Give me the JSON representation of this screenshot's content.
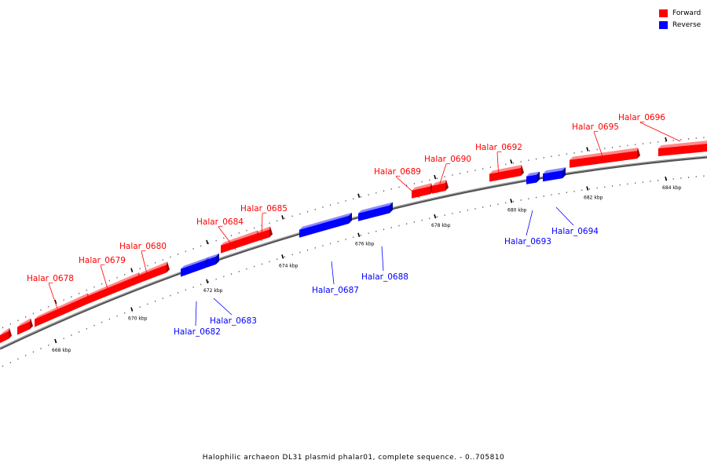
{
  "caption": "Halophilic archaeon DL31 plasmid phalar01, complete sequence. - 0..705810",
  "colors": {
    "forward": "#ff0000",
    "forward_top": "#ff8a8a",
    "forward_end": "#a80000",
    "reverse": "#0000ff",
    "reverse_top": "#8a8aff",
    "reverse_end": "#0000a8",
    "backbone": "#707070"
  },
  "legend": [
    {
      "label": "Forward",
      "strand": "forward"
    },
    {
      "label": "Reverse",
      "strand": "reverse"
    }
  ],
  "scale_labels": [
    "668 kbp",
    "670 kbp",
    "672 kbp",
    "674 kbp",
    "676 kbp",
    "678 kbp",
    "680 kbp",
    "682 kbp",
    "684 kbp"
  ],
  "genes": [
    {
      "label": "Halar_0678",
      "strand": "forward"
    },
    {
      "label": "Halar_0679",
      "strand": "forward"
    },
    {
      "label": "Halar_0680",
      "strand": "forward"
    },
    {
      "label": "Halar_0682",
      "strand": "reverse"
    },
    {
      "label": "Halar_0683",
      "strand": "reverse"
    },
    {
      "label": "Halar_0684",
      "strand": "forward"
    },
    {
      "label": "Halar_0685",
      "strand": "forward"
    },
    {
      "label": "Halar_0687",
      "strand": "reverse"
    },
    {
      "label": "Halar_0688",
      "strand": "reverse"
    },
    {
      "label": "Halar_0689",
      "strand": "forward"
    },
    {
      "label": "Halar_0690",
      "strand": "forward"
    },
    {
      "label": "Halar_0692",
      "strand": "forward"
    },
    {
      "label": "Halar_0693",
      "strand": "reverse"
    },
    {
      "label": "Halar_0694",
      "strand": "reverse"
    },
    {
      "label": "Halar_0695",
      "strand": "forward"
    },
    {
      "label": "Halar_0696",
      "strand": "forward"
    }
  ]
}
